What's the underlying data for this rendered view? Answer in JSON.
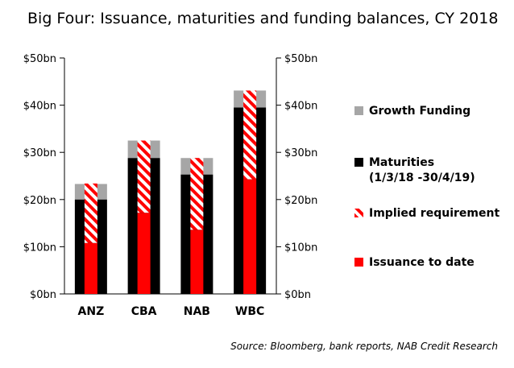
{
  "chart_data": {
    "type": "bar",
    "title": "Big Four: Issuance, maturities and funding balances, CY 2018",
    "categories": [
      "ANZ",
      "CBA",
      "NAB",
      "WBC"
    ],
    "series": [
      {
        "name": "Growth Funding",
        "values": [
          3.3,
          3.7,
          3.5,
          3.6
        ]
      },
      {
        "name": "Maturities (1/3/18 -30/4/19)",
        "values": [
          20.0,
          28.8,
          25.3,
          39.5
        ]
      },
      {
        "name": "Implied requirement",
        "values": [
          12.6,
          15.3,
          15.2,
          18.8
        ]
      },
      {
        "name": "Issuance to date",
        "values": [
          10.8,
          17.2,
          13.6,
          24.3
        ]
      }
    ],
    "ylim": [
      0,
      50
    ],
    "yticks": [
      "$0bn",
      "$10bn",
      "$20bn",
      "$30bn",
      "$40bn",
      "$50bn"
    ],
    "ytick_values": [
      0,
      10,
      20,
      30,
      40,
      50
    ],
    "legend_position": "right",
    "grid": false,
    "colors": {
      "growth": "#a6a6a6",
      "maturities": "#000000",
      "implied": "#ff0000",
      "issuance": "#ff0000"
    }
  },
  "legend": {
    "growth": "Growth Funding",
    "maturities": "Maturities",
    "maturities_sub": "(1/3/18 -30/4/19)",
    "implied": "Implied requirement",
    "issuance": "Issuance to date"
  },
  "source": "Source: Bloomberg, bank reports, NAB Credit Research"
}
